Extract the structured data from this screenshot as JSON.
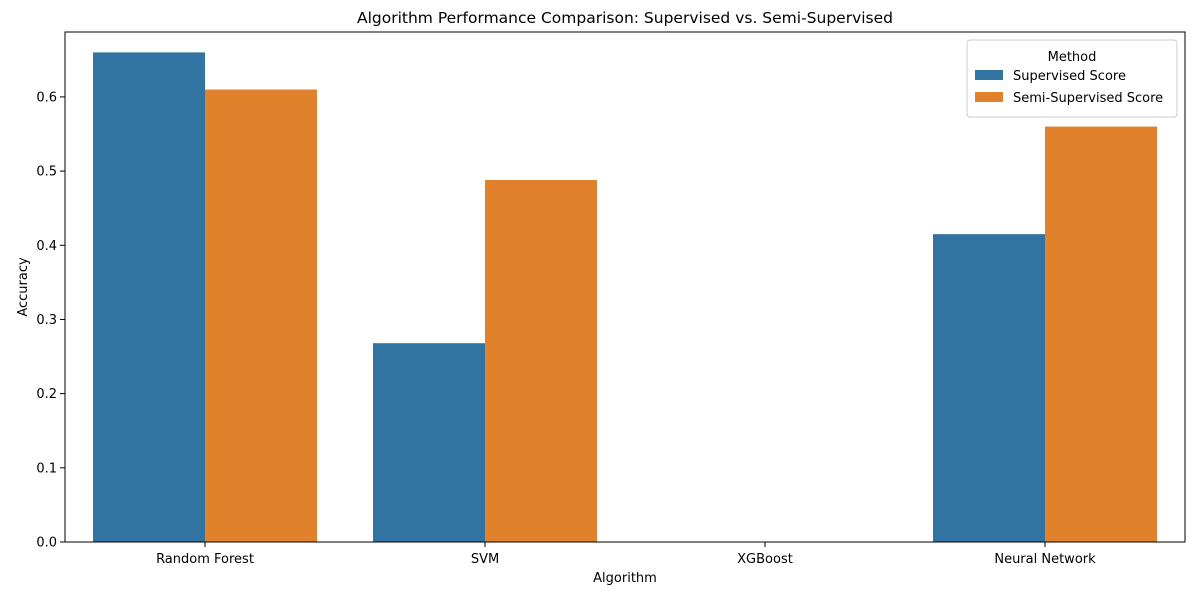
{
  "chart_data": {
    "type": "bar",
    "title": "Algorithm Performance Comparison: Supervised vs. Semi-Supervised",
    "xlabel": "Algorithm",
    "ylabel": "Accuracy",
    "categories": [
      "Random Forest",
      "SVM",
      "XGBoost",
      "Neural Network"
    ],
    "series": [
      {
        "name": "Supervised Score",
        "color": "#3274a1",
        "values": [
          0.66,
          0.268,
          0.0,
          0.415
        ]
      },
      {
        "name": "Semi-Supervised Score",
        "color": "#e1812c",
        "values": [
          0.61,
          0.488,
          0.0,
          0.56
        ]
      }
    ],
    "ylim": [
      0,
      0.6875
    ],
    "yticks": [
      0.0,
      0.1,
      0.2,
      0.3,
      0.4,
      0.5,
      0.6
    ],
    "ytick_labels": [
      "0.0",
      "0.1",
      "0.2",
      "0.3",
      "0.4",
      "0.5",
      "0.6"
    ],
    "grid": false,
    "legend": {
      "title": "Method",
      "placement": "top-right"
    }
  }
}
